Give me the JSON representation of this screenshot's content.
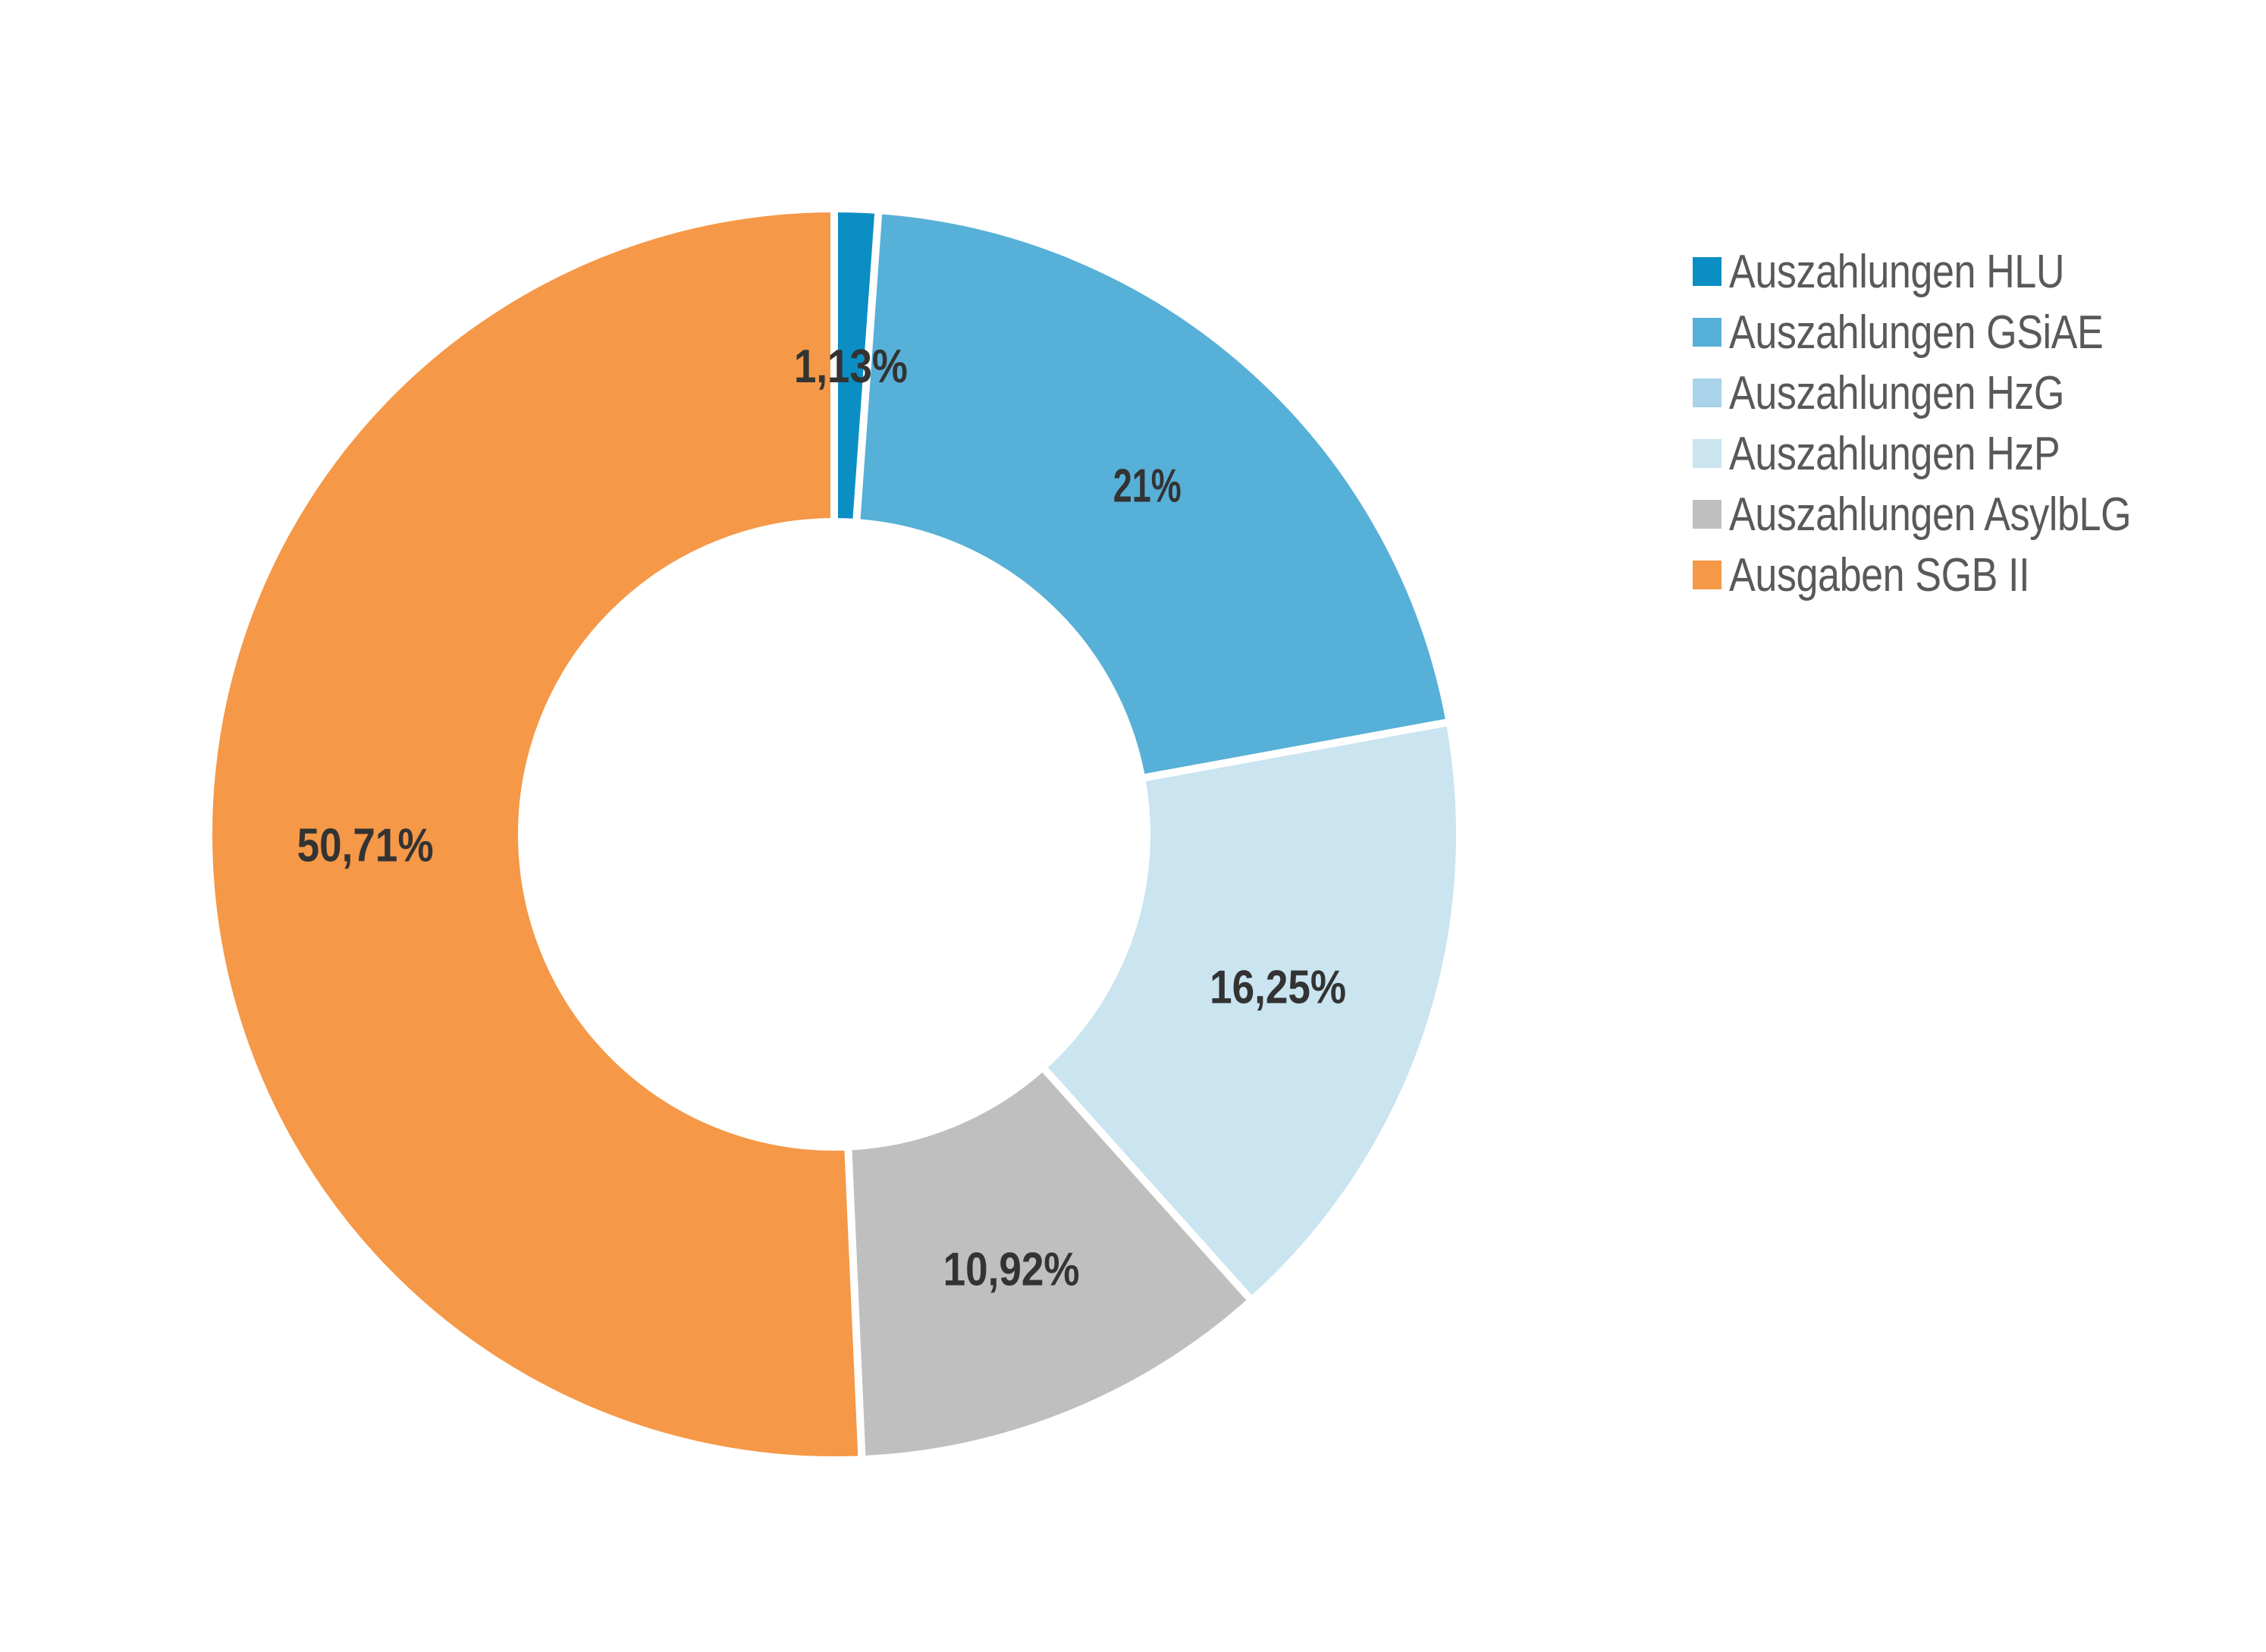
{
  "chart_data": {
    "type": "pie",
    "title": "",
    "donut": true,
    "start_angle_deg": 0,
    "direction": "clockwise",
    "legend_position": "right",
    "slices": [
      {
        "name": "Auszahlungen HLU",
        "value": 1.13,
        "label": "1,13%",
        "color": "#0b8ec4"
      },
      {
        "name": "Auszahlungen GSiAE",
        "value": 21,
        "label": "21%",
        "color": "#57b0d7"
      },
      {
        "name": "Auszahlungen HzG",
        "value": 0,
        "label": "",
        "color": "#a8d3e8"
      },
      {
        "name": "Auszahlungen HzP",
        "value": 16.25,
        "label": "16,25%",
        "color": "#cae4f0"
      },
      {
        "name": "Auszahlungen AsylbLG",
        "value": 10.92,
        "label": "10,92%",
        "color": "#bfbfbf"
      },
      {
        "name": "Ausgaben SGB II",
        "value": 50.71,
        "label": "50,71%",
        "color": "#f59847"
      }
    ],
    "label_color": "#333333",
    "leader_line_color": "#7f7f7f"
  }
}
